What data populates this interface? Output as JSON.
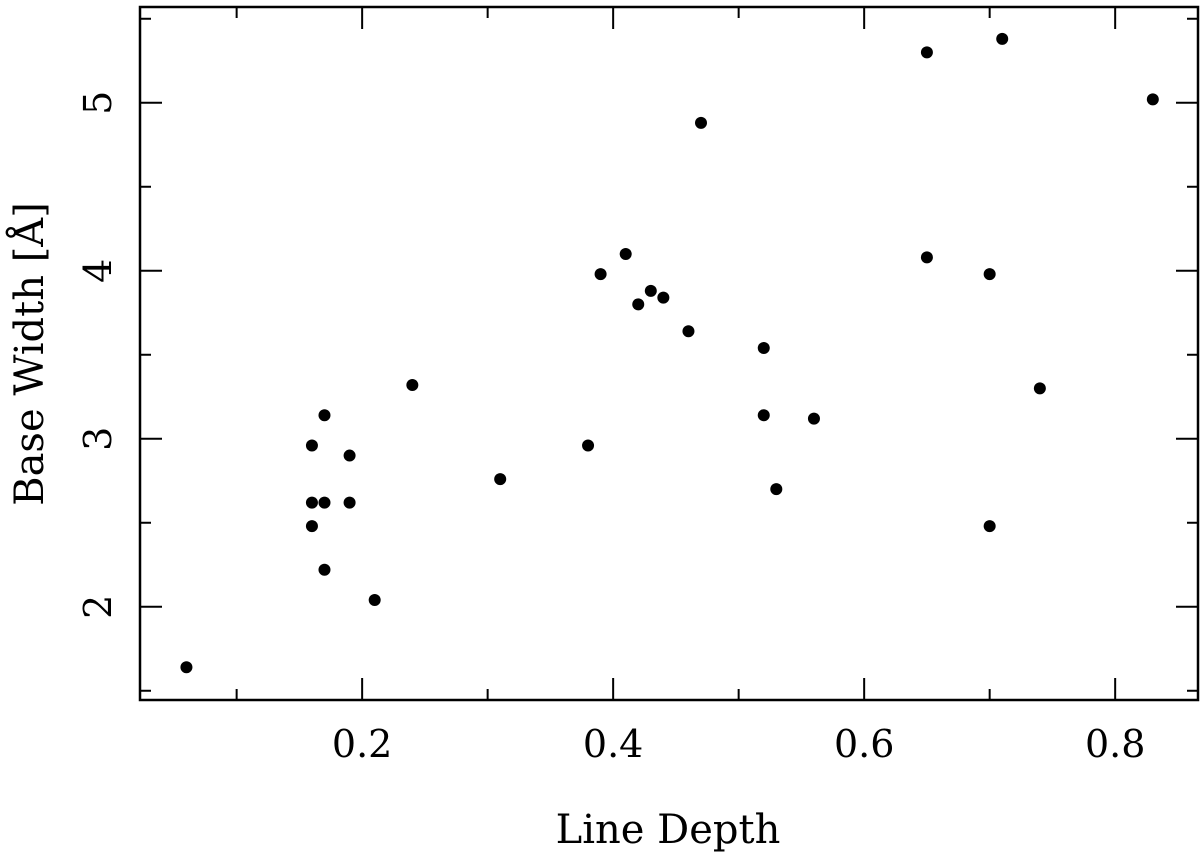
{
  "chart_data": {
    "type": "scatter",
    "xlabel": "Line Depth",
    "ylabel": "Base Width [Å]",
    "xlim": [
      0.023,
      0.866
    ],
    "ylim": [
      1.445,
      5.57
    ],
    "x_major_ticks": [
      0.2,
      0.4,
      0.6,
      0.8
    ],
    "x_minor_ticks": [
      0.1,
      0.3,
      0.5,
      0.7
    ],
    "x_tick_labels": [
      "0.2",
      "0.4",
      "0.6",
      "0.8"
    ],
    "y_major_ticks": [
      2,
      3,
      4,
      5
    ],
    "y_minor_ticks": [
      1.5,
      2.5,
      3.5,
      4.5,
      5.5
    ],
    "y_tick_labels": [
      "2",
      "3",
      "4",
      "5"
    ],
    "grid": false,
    "legend": "none",
    "marker_color": "#000000",
    "series": [
      {
        "x": [
          0.06,
          0.16,
          0.16,
          0.16,
          0.17,
          0.17,
          0.17,
          0.19,
          0.19,
          0.21,
          0.24,
          0.31,
          0.38,
          0.39,
          0.41,
          0.42,
          0.43,
          0.44,
          0.46,
          0.47,
          0.52,
          0.52,
          0.53,
          0.56,
          0.65,
          0.65,
          0.7,
          0.7,
          0.71,
          0.74,
          0.83
        ],
        "y": [
          1.64,
          2.96,
          2.62,
          2.48,
          3.14,
          2.62,
          2.22,
          2.9,
          2.62,
          2.04,
          3.32,
          2.76,
          2.96,
          3.98,
          4.1,
          3.8,
          3.88,
          3.84,
          3.64,
          4.88,
          3.54,
          3.14,
          2.7,
          3.12,
          5.3,
          4.08,
          3.98,
          2.48,
          5.38,
          3.3,
          5.02
        ]
      }
    ]
  }
}
